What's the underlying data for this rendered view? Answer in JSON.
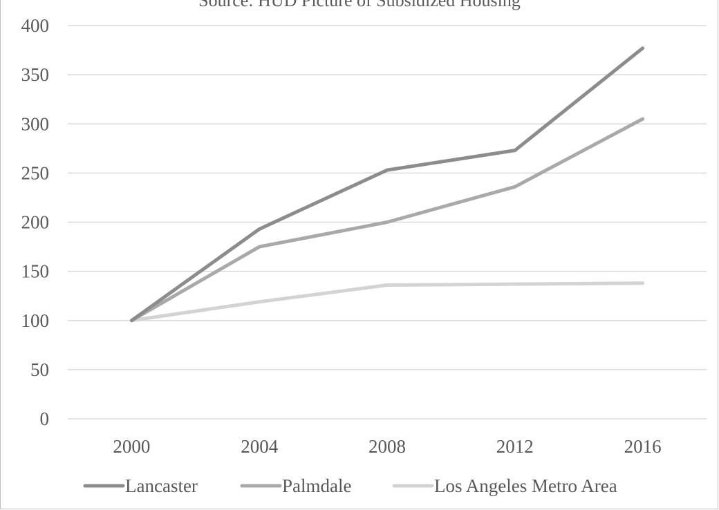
{
  "chart_data": {
    "type": "line",
    "title": "Source: HUD Picture of Subsidized Housing",
    "categories": [
      "2000",
      "2004",
      "2008",
      "2012",
      "2016"
    ],
    "series": [
      {
        "name": "Lancaster",
        "values": [
          100,
          193,
          253,
          273,
          377
        ],
        "color": "#8c8c8c"
      },
      {
        "name": "Palmdale",
        "values": [
          100,
          175,
          200,
          236,
          305
        ],
        "color": "#a9a9a9"
      },
      {
        "name": "Los Angeles Metro Area",
        "values": [
          100,
          119,
          136,
          137,
          138
        ],
        "color": "#d3d3d3"
      }
    ],
    "y_ticks": [
      "0",
      "50",
      "100",
      "150",
      "200",
      "250",
      "300",
      "350",
      "400"
    ],
    "ylim": [
      0,
      400
    ],
    "xlabel": "",
    "ylabel": "",
    "grid": true,
    "legend_position": "bottom"
  }
}
